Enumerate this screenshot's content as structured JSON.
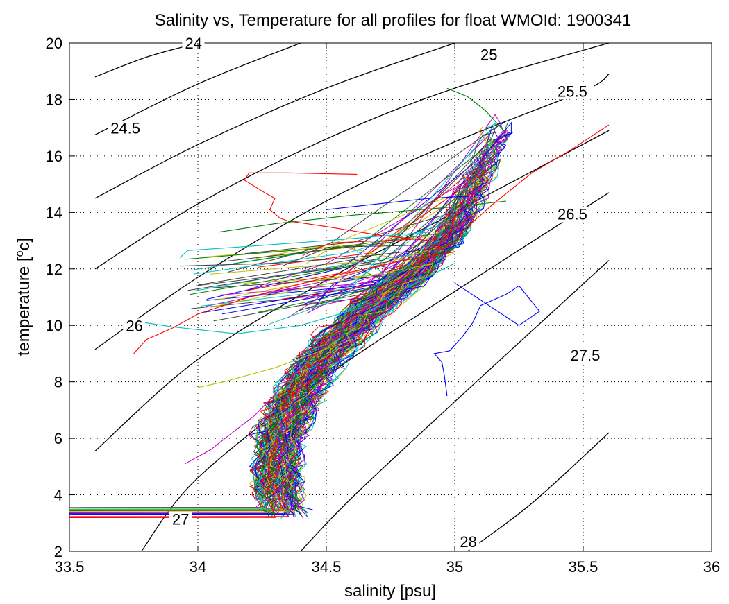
{
  "chart_data": {
    "type": "line",
    "title": "Salinity vs, Temperature for all profiles for float WMOId: 1900341",
    "xlabel": "salinity [psu]",
    "ylabel_main": "temperature [",
    "ylabel_sup": "o",
    "ylabel_tail": "c]",
    "xlim": [
      33.5,
      36
    ],
    "ylim": [
      2,
      20
    ],
    "xticks": [
      33.5,
      34,
      34.5,
      35,
      35.5,
      36
    ],
    "xtick_labels": [
      "33.5",
      "34",
      "34.5",
      "35",
      "35.5",
      "36"
    ],
    "yticks": [
      2,
      4,
      6,
      8,
      10,
      12,
      14,
      16,
      18,
      20
    ],
    "ytick_labels": [
      "2",
      "4",
      "6",
      "8",
      "10",
      "12",
      "14",
      "16",
      "18",
      "20"
    ],
    "grid": true,
    "density_contours": [
      {
        "label": "24",
        "points": [
          [
            33.6,
            18.8
          ],
          [
            33.8,
            19.5
          ],
          [
            34.0,
            20.0
          ]
        ],
        "label_at": [
          33.95,
          19.8
        ]
      },
      {
        "label": "24.5",
        "points": [
          [
            33.6,
            16.75
          ],
          [
            34.0,
            18.55
          ],
          [
            34.4,
            20.0
          ]
        ],
        "label_at": [
          33.66,
          16.8
        ]
      },
      {
        "label": "25",
        "points": [
          [
            33.6,
            14.5
          ],
          [
            34.0,
            16.4
          ],
          [
            34.5,
            18.4
          ],
          [
            35.0,
            20.0
          ]
        ],
        "label_at": [
          35.1,
          19.4
        ]
      },
      {
        "label": "25.5",
        "points": [
          [
            33.6,
            12.0
          ],
          [
            34.0,
            14.3
          ],
          [
            34.5,
            16.6
          ],
          [
            35.0,
            18.4
          ],
          [
            35.6,
            20.0
          ]
        ],
        "label_at": [
          35.4,
          18.1
        ]
      },
      {
        "label": "26",
        "points": [
          [
            33.6,
            9.15
          ],
          [
            34.0,
            11.7
          ],
          [
            34.5,
            14.4
          ],
          [
            35.0,
            16.5
          ],
          [
            35.5,
            18.3
          ],
          [
            35.6,
            18.9
          ]
        ],
        "label_at": [
          33.72,
          9.8
        ]
      },
      {
        "label": "26.5",
        "points": [
          [
            33.6,
            5.55
          ],
          [
            34.0,
            8.8
          ],
          [
            34.5,
            11.6
          ],
          [
            35.0,
            14.0
          ],
          [
            35.6,
            16.9
          ]
        ],
        "label_at": [
          35.4,
          13.75
        ]
      },
      {
        "label": "27",
        "points": [
          [
            33.78,
            2.0
          ],
          [
            34.0,
            4.6
          ],
          [
            34.5,
            8.2
          ],
          [
            35.0,
            11.2
          ],
          [
            35.6,
            14.7
          ]
        ],
        "label_at": [
          33.9,
          2.95
        ]
      },
      {
        "label": "27.5",
        "points": [
          [
            34.4,
            2.0
          ],
          [
            34.6,
            3.9
          ],
          [
            35.0,
            7.3
          ],
          [
            35.6,
            12.3
          ]
        ],
        "label_at": [
          35.45,
          8.75
        ]
      },
      {
        "label": "28",
        "points": [
          [
            35.05,
            2.0
          ],
          [
            35.3,
            3.7
          ],
          [
            35.6,
            6.2
          ]
        ],
        "label_at": [
          35.02,
          2.15
        ]
      }
    ],
    "profile_colors": [
      "#0000ff",
      "#008000",
      "#ff0000",
      "#00bfbf",
      "#bf00bf",
      "#bfbf00",
      "#404040"
    ],
    "profile_count": 140,
    "profiles_note": "Each profile traces from ~3.5-4 °C at 34.3-34.45 psu up through a tight core along roughly 8 °C/34.35 psu → 12 °C/34.9 psu → 17 °C/35.2 psu.",
    "highlighted_profiles": [
      {
        "color": "#ff0000",
        "points": [
          [
            34.62,
            15.35
          ],
          [
            34.35,
            15.4
          ],
          [
            34.2,
            15.4
          ],
          [
            34.18,
            15.15
          ],
          [
            34.26,
            14.7
          ],
          [
            34.3,
            14.5
          ],
          [
            34.28,
            14.1
          ],
          [
            34.32,
            13.8
          ],
          [
            34.35,
            13.7
          ],
          [
            34.5,
            13.5
          ],
          [
            34.7,
            13.2
          ],
          [
            34.9,
            13.0
          ]
        ]
      },
      {
        "color": "#ff0000",
        "points": [
          [
            33.75,
            9.0
          ],
          [
            33.8,
            9.5
          ],
          [
            33.9,
            9.9
          ],
          [
            34.0,
            10.4
          ],
          [
            34.2,
            11.0
          ],
          [
            34.5,
            11.7
          ],
          [
            34.8,
            12.3
          ],
          [
            35.0,
            12.6
          ]
        ]
      },
      {
        "color": "#0000ff",
        "points": [
          [
            34.97,
            7.5
          ],
          [
            34.96,
            8.2
          ],
          [
            34.95,
            8.7
          ],
          [
            34.92,
            9.0
          ],
          [
            34.98,
            9.1
          ],
          [
            35.03,
            9.6
          ],
          [
            35.07,
            10.1
          ],
          [
            35.1,
            10.7
          ],
          [
            35.2,
            11.1
          ],
          [
            35.25,
            11.4
          ],
          [
            35.33,
            10.5
          ],
          [
            35.25,
            10.0
          ],
          [
            35.0,
            11.5
          ]
        ]
      },
      {
        "color": "#00bfbf",
        "points": [
          [
            33.93,
            12.4
          ],
          [
            33.96,
            12.65
          ],
          [
            34.2,
            12.8
          ],
          [
            34.5,
            13.0
          ],
          [
            34.9,
            13.3
          ]
        ]
      },
      {
        "color": "#00bfbf",
        "points": [
          [
            33.72,
            10.2
          ],
          [
            33.9,
            9.95
          ],
          [
            34.15,
            9.7
          ],
          [
            34.4,
            10.0
          ],
          [
            34.7,
            10.8
          ],
          [
            35.0,
            12.2
          ]
        ]
      },
      {
        "color": "#bf00bf",
        "points": [
          [
            33.95,
            5.1
          ],
          [
            34.05,
            5.6
          ],
          [
            34.12,
            6.1
          ],
          [
            34.22,
            6.8
          ],
          [
            34.4,
            8.5
          ],
          [
            34.7,
            11.0
          ]
        ]
      },
      {
        "color": "#404040",
        "points": [
          [
            33.93,
            12.1
          ],
          [
            34.3,
            12.2
          ],
          [
            34.6,
            12.4
          ],
          [
            34.9,
            12.7
          ]
        ]
      },
      {
        "color": "#008000",
        "points": [
          [
            34.08,
            13.3
          ],
          [
            34.3,
            13.6
          ],
          [
            34.6,
            13.9
          ],
          [
            35.0,
            14.2
          ],
          [
            35.2,
            14.4
          ]
        ]
      },
      {
        "color": "#bfbf00",
        "points": [
          [
            34.0,
            7.8
          ],
          [
            34.1,
            8.0
          ],
          [
            34.3,
            8.5
          ],
          [
            34.6,
            9.5
          ]
        ]
      },
      {
        "color": "#0000ff",
        "points": [
          [
            34.5,
            14.1
          ],
          [
            34.7,
            14.3
          ],
          [
            34.9,
            14.5
          ],
          [
            35.1,
            14.6
          ]
        ]
      },
      {
        "color": "#ff0000",
        "points": [
          [
            35.6,
            17.1
          ],
          [
            35.45,
            16.2
          ],
          [
            35.3,
            15.4
          ],
          [
            35.15,
            14.3
          ],
          [
            35.05,
            13.5
          ]
        ]
      },
      {
        "color": "#008000",
        "points": [
          [
            34.97,
            18.4
          ],
          [
            35.05,
            18.1
          ],
          [
            35.12,
            17.6
          ],
          [
            35.2,
            16.8
          ]
        ]
      }
    ]
  }
}
